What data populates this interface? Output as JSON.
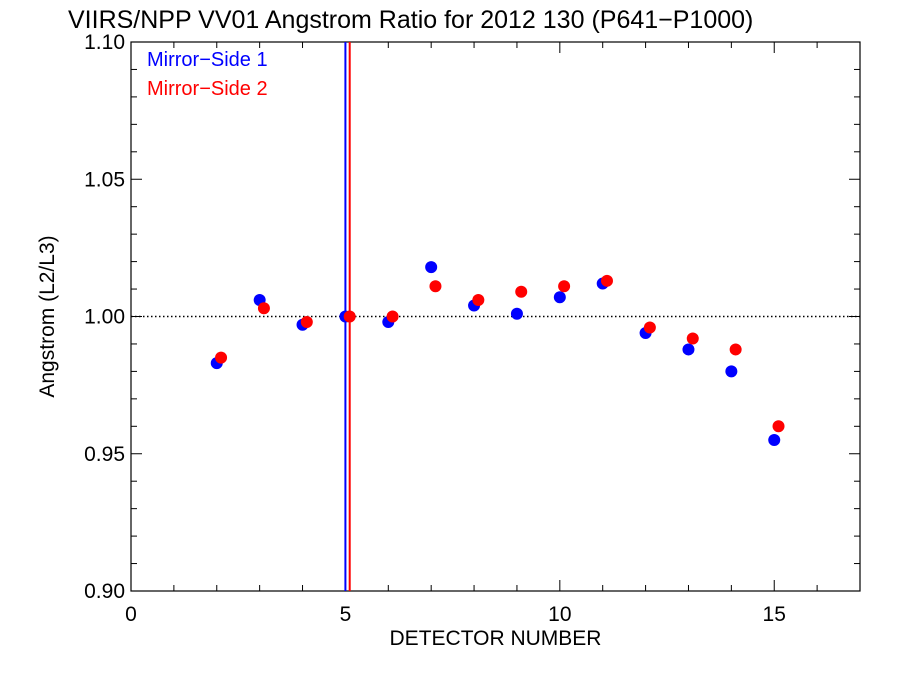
{
  "chart_data": {
    "type": "scatter",
    "title": "VIIRS/NPP VV01 Angstrom Ratio for 2012 130 (P641−P1000)",
    "xlabel": "DETECTOR NUMBER",
    "ylabel": "Angstrom (L2/L3)",
    "xlim": [
      0,
      17
    ],
    "ylim": [
      0.9,
      1.1
    ],
    "x_ticks": [
      0,
      5,
      10,
      15
    ],
    "x_tick_labels": [
      "0",
      "5",
      "10",
      "15"
    ],
    "y_ticks": [
      0.9,
      0.95,
      1.0,
      1.05,
      1.1
    ],
    "y_tick_labels": [
      "0.90",
      "0.95",
      "1.00",
      "1.05",
      "1.10"
    ],
    "legend_position": "top-left",
    "reference_line": {
      "y": 1.0,
      "style": "dotted"
    },
    "vertical_lines": [
      {
        "x": 5.0,
        "color": "#0000ff",
        "series": "Mirror−Side 1"
      },
      {
        "x": 5.1,
        "color": "#ff0000",
        "series": "Mirror−Side 2"
      }
    ],
    "series": [
      {
        "name": "Mirror−Side 1",
        "color": "#0000ff",
        "x": [
          2,
          3,
          4,
          5,
          6,
          7,
          8,
          9,
          10,
          11,
          12,
          13,
          14,
          15
        ],
        "y": [
          0.983,
          1.006,
          0.997,
          1.0,
          0.998,
          1.018,
          1.004,
          1.001,
          1.007,
          1.012,
          0.994,
          0.988,
          0.98,
          0.955
        ]
      },
      {
        "name": "Mirror−Side 2",
        "color": "#ff0000",
        "x": [
          2.1,
          3.1,
          4.1,
          5.1,
          6.1,
          7.1,
          8.1,
          9.1,
          10.1,
          11.1,
          12.1,
          13.1,
          14.1,
          15.1
        ],
        "y": [
          0.985,
          1.003,
          0.998,
          1.0,
          1.0,
          1.011,
          1.006,
          1.009,
          1.011,
          1.013,
          0.996,
          0.992,
          0.988,
          0.96
        ]
      }
    ]
  }
}
